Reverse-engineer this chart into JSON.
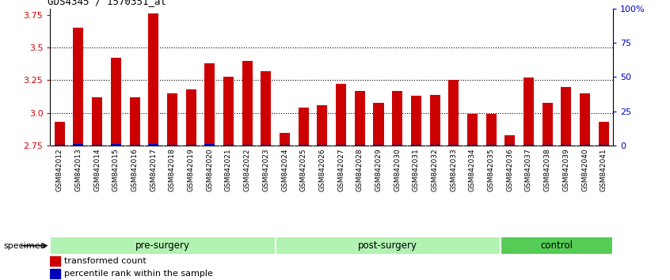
{
  "title": "GDS4345 / 1570351_at",
  "samples": [
    "GSM842012",
    "GSM842013",
    "GSM842014",
    "GSM842015",
    "GSM842016",
    "GSM842017",
    "GSM842018",
    "GSM842019",
    "GSM842020",
    "GSM842021",
    "GSM842022",
    "GSM842023",
    "GSM842024",
    "GSM842025",
    "GSM842026",
    "GSM842027",
    "GSM842028",
    "GSM842029",
    "GSM842030",
    "GSM842031",
    "GSM842032",
    "GSM842033",
    "GSM842034",
    "GSM842035",
    "GSM842036",
    "GSM842037",
    "GSM842038",
    "GSM842039",
    "GSM842040",
    "GSM842041"
  ],
  "transformed_count": [
    2.93,
    3.65,
    3.12,
    3.42,
    3.12,
    3.76,
    3.15,
    3.18,
    3.38,
    3.28,
    3.4,
    3.32,
    2.85,
    3.04,
    3.06,
    3.22,
    3.17,
    3.08,
    3.17,
    3.13,
    3.14,
    3.25,
    2.99,
    2.99,
    2.83,
    3.27,
    3.08,
    3.2,
    3.15,
    2.93
  ],
  "percentile_values": [
    2.758,
    2.762,
    2.758,
    2.76,
    2.758,
    2.764,
    2.754,
    2.756,
    2.76,
    2.758,
    2.758,
    2.756,
    2.754,
    2.756,
    2.756,
    2.756,
    2.756,
    2.756,
    2.754,
    2.754,
    2.754,
    2.758,
    2.754,
    2.754,
    2.754,
    2.756,
    2.754,
    2.756,
    2.754,
    2.754
  ],
  "groups": [
    {
      "label": "pre-surgery",
      "start": 0,
      "end": 12,
      "color": "#b2f2b2"
    },
    {
      "label": "post-surgery",
      "start": 12,
      "end": 24,
      "color": "#b2f2b2"
    },
    {
      "label": "control",
      "start": 24,
      "end": 30,
      "color": "#55cc55"
    }
  ],
  "y_min": 2.75,
  "y_max": 3.8,
  "y_ticks": [
    2.75,
    3.0,
    3.25,
    3.5,
    3.75
  ],
  "right_y_ticks": [
    0,
    25,
    50,
    75,
    100
  ],
  "right_y_labels": [
    "0",
    "25",
    "50",
    "75",
    "100%"
  ],
  "bar_color_red": "#CC0000",
  "bar_color_blue": "#0000BB",
  "bg_color": "#FFFFFF",
  "tick_label_color_left": "#CC0000",
  "tick_label_color_right": "#0000BB",
  "bar_width": 0.55
}
